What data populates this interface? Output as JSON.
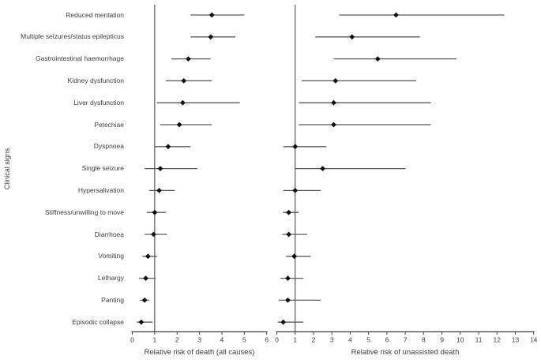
{
  "page": {
    "background": "#ffffff"
  },
  "chart_data": {
    "type": "scatter",
    "subtype": "forest-plot-dot-whisker",
    "ylabel": "Clinical signs",
    "categories": [
      "Reduced mentation",
      "Multiple seizures/status epilepticus",
      "Gastrointestinal haemorrhage",
      "Kidney dysfunction",
      "Liver dysfunction",
      "Petechiae",
      "Dyspnoea",
      "Single seizure",
      "Hypersalivation",
      "Stiffness/unwilling to move",
      "Diarrhoea",
      "Vomiting",
      "Lethargy",
      "Panting",
      "Episodic collapse"
    ],
    "legend": "none",
    "grid": false,
    "marker": "filled-diamond",
    "colors": {
      "marker": "#111111",
      "ci_line": "#58595b",
      "reference_line": "#4a4a4a",
      "axis": "#3f3f3f",
      "text": "#3d3d3d"
    },
    "panels": [
      {
        "xlabel": "Relative risk of death (all causes)",
        "xlim": [
          0,
          6
        ],
        "xticks": [
          0,
          1,
          2,
          3,
          4,
          5,
          6
        ],
        "reference_line_x": 1,
        "values": [
          3.55,
          3.5,
          2.5,
          2.3,
          2.25,
          2.1,
          1.6,
          1.25,
          1.2,
          1.0,
          0.95,
          0.7,
          0.6,
          0.55,
          0.4
        ],
        "ci_low": [
          2.6,
          2.6,
          1.75,
          1.5,
          1.1,
          1.25,
          1.0,
          0.55,
          0.75,
          0.65,
          0.55,
          0.45,
          0.3,
          0.35,
          0.2
        ],
        "ci_high": [
          5.0,
          4.6,
          3.5,
          3.55,
          4.8,
          3.55,
          2.6,
          2.9,
          1.9,
          1.5,
          1.55,
          1.1,
          1.05,
          0.75,
          0.9
        ]
      },
      {
        "xlabel": "Relative risk of unassisted death",
        "xlim": [
          0,
          14
        ],
        "xticks": [
          0,
          1,
          2,
          3,
          4,
          5,
          6,
          7,
          8,
          9,
          10,
          11,
          12,
          13,
          14
        ],
        "reference_line_x": 1,
        "values": [
          6.5,
          4.1,
          5.5,
          3.2,
          3.1,
          3.1,
          1.0,
          2.5,
          1.0,
          0.65,
          0.65,
          0.95,
          0.6,
          0.6,
          0.35
        ],
        "ci_low": [
          3.4,
          2.1,
          3.1,
          1.35,
          1.2,
          1.2,
          0.35,
          1.0,
          0.35,
          0.33,
          0.3,
          0.5,
          0.2,
          0.1,
          0.05
        ],
        "ci_high": [
          12.4,
          7.8,
          9.8,
          7.6,
          8.4,
          8.4,
          2.7,
          7.0,
          2.4,
          1.2,
          1.65,
          1.85,
          1.45,
          2.4,
          1.45
        ]
      }
    ]
  }
}
